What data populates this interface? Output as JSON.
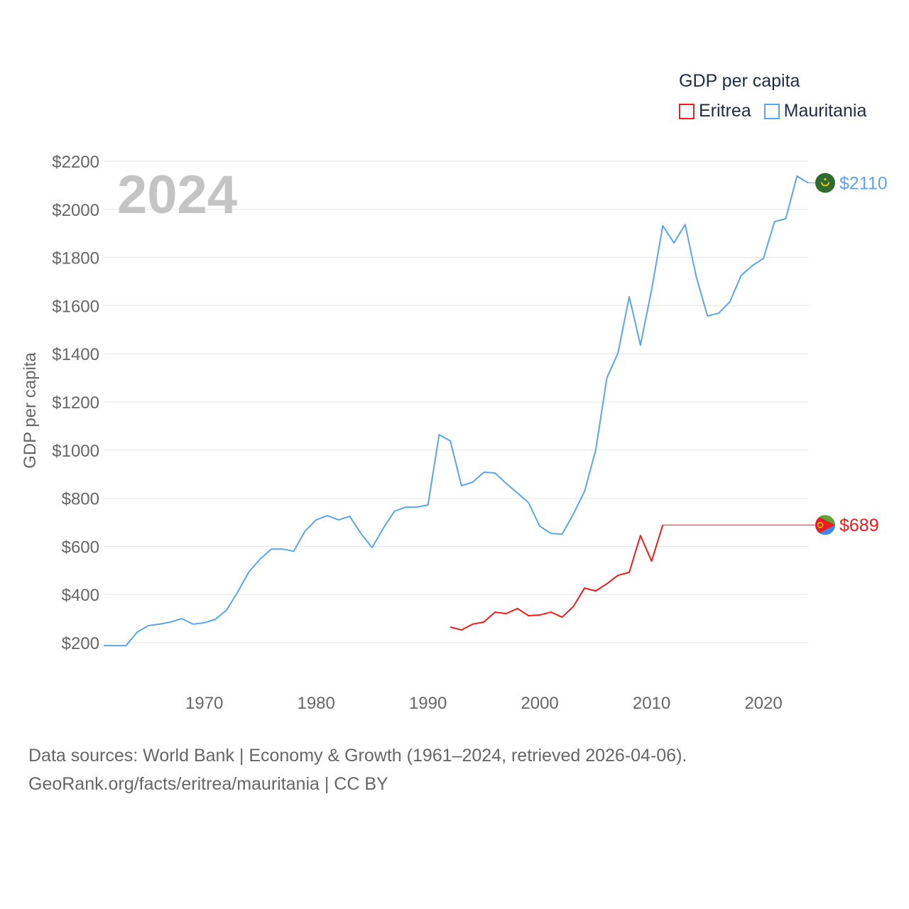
{
  "chart_data": {
    "type": "line",
    "title": "GDP per capita",
    "ylabel": "GDP per capita",
    "xlabel": "",
    "year_watermark": "2024",
    "ylim": [
      130,
      2250
    ],
    "xlim": [
      1961,
      2024
    ],
    "grid": true,
    "legend_placement": "top-right",
    "y_ticks": [
      200,
      400,
      600,
      800,
      1000,
      1200,
      1400,
      1600,
      1800,
      2000,
      2200
    ],
    "y_tick_labels": [
      "$200",
      "$400",
      "$600",
      "$800",
      "$1000",
      "$1200",
      "$1400",
      "$1600",
      "$1800",
      "$2000",
      "$2200"
    ],
    "x_ticks": [
      1970,
      1980,
      1990,
      2000,
      2010,
      2020
    ],
    "x_tick_labels": [
      "1970",
      "1980",
      "1990",
      "2000",
      "2010",
      "2020"
    ],
    "series": [
      {
        "name": "Mauritania",
        "color": "#5aa5ec",
        "end_label": "$2110",
        "flag": "mauritania-flag",
        "start_year": 1961,
        "values": [
          188,
          188,
          188,
          244,
          271,
          277,
          286,
          300,
          277,
          283,
          297,
          336,
          412,
          495,
          548,
          589,
          589,
          580,
          663,
          710,
          728,
          710,
          725,
          654,
          595,
          675,
          746,
          763,
          763,
          772,
          1064,
          1038,
          852,
          867,
          908,
          905,
          861,
          822,
          781,
          684,
          654,
          651,
          734,
          828,
          1000,
          1300,
          1404,
          1637,
          1436,
          1666,
          1932,
          1861,
          1937,
          1719,
          1557,
          1569,
          1616,
          1725,
          1766,
          1796,
          1949,
          1961,
          2138,
          2110
        ]
      },
      {
        "name": "Eritrea",
        "color": "#f31a1a",
        "end_label": "$689",
        "flag": "eritrea-flag",
        "start_year": 1992,
        "values": [
          265,
          253,
          277,
          286,
          327,
          321,
          342,
          312,
          315,
          327,
          306,
          350,
          427,
          415,
          445,
          480,
          492,
          645,
          539,
          689
        ],
        "carried_forward_to": 2024
      }
    ]
  },
  "footer": {
    "line1": "Data sources: World Bank | Economy & Growth (1961–2024, retrieved 2026-04-06).",
    "line2": "GeoRank.org/facts/eritrea/mauritania | CC BY"
  }
}
